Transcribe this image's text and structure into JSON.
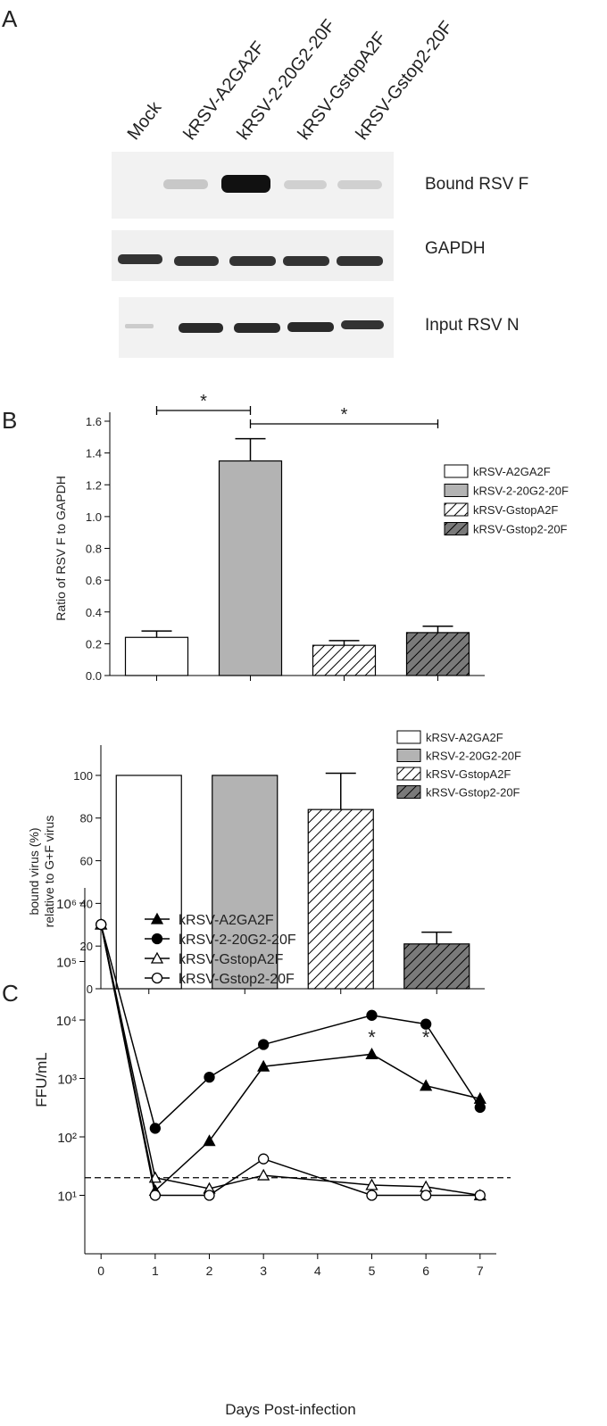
{
  "panel_labels": [
    "A",
    "B",
    "C"
  ],
  "blot": {
    "lanes": [
      "Mock",
      "kRSV-A2GA2F",
      "kRSV-2-20G2-20F",
      "kRSV-GstopA2F",
      "kRSV-Gstop2-20F"
    ],
    "rows": [
      "Bound RSV F",
      "GAPDH",
      "Input RSV N"
    ]
  },
  "chart_data": [
    {
      "type": "bar",
      "ylabel": "Ratio of RSV F to GAPDH",
      "categories": [
        "kRSV-A2GA2F",
        "kRSV-2-20G2-20F",
        "kRSV-GstopA2F",
        "kRSV-Gstop2-20F"
      ],
      "values": [
        0.24,
        1.35,
        0.19,
        0.27
      ],
      "errors": [
        0.04,
        0.14,
        0.03,
        0.04
      ],
      "colors": [
        "#ffffff",
        "#b3b3b3",
        "#ffffff",
        "#7a7a7a"
      ],
      "hatch": [
        false,
        false,
        true,
        true
      ],
      "ylim": [
        0,
        1.6
      ],
      "yticks": [
        {
          "value": 0,
          "label": "0.0"
        },
        0.2,
        0.4,
        0.6,
        0.8,
        {
          "value": 1,
          "label": "1.0"
        },
        1.2,
        1.4,
        1.6
      ],
      "annotations": [
        {
          "text": "*",
          "from": 0,
          "to": 1
        },
        {
          "text": "*",
          "from": 1,
          "to": 3
        }
      ]
    },
    {
      "type": "bar",
      "ylabel": [
        "bound virus (%)",
        "relative to G+F virus"
      ],
      "categories": [
        "kRSV-A2GA2F",
        "kRSV-2-20G2-20F",
        "kRSV-GstopA2F",
        "kRSV-Gstop2-20F"
      ],
      "values": [
        100,
        100,
        84,
        21
      ],
      "errors": [
        null,
        null,
        17,
        5.5
      ],
      "colors": [
        "#ffffff",
        "#b3b3b3",
        "#ffffff",
        "#7a7a7a"
      ],
      "hatch": [
        false,
        false,
        true,
        true
      ],
      "ylim": [
        0,
        110
      ],
      "yticks": [
        0,
        20,
        40,
        60,
        80,
        100
      ]
    },
    {
      "type": "line",
      "log_y": true,
      "ylabel": "FFU/mL",
      "xlabel": "Days Post-infection",
      "x": [
        0,
        1,
        2,
        3,
        5,
        6,
        7
      ],
      "series": [
        {
          "name": "kRSV-A2GA2F",
          "marker": "triangle",
          "filled": true,
          "color": "#000000",
          "values": [
            430000,
            12,
            85,
            1600,
            2600,
            750,
            450
          ]
        },
        {
          "name": "kRSV-2-20G2-20F",
          "marker": "circle",
          "filled": true,
          "color": "#000000",
          "values": [
            430000,
            140,
            1050,
            3800,
            12000,
            8500,
            320
          ]
        },
        {
          "name": "kRSV-GstopA2F",
          "marker": "triangle",
          "filled": false,
          "color": "#000000",
          "values": [
            430000,
            20,
            13,
            22,
            15,
            14,
            10
          ]
        },
        {
          "name": "kRSV-Gstop2-20F",
          "marker": "circle",
          "filled": false,
          "color": "#000000",
          "values": [
            430000,
            10,
            10,
            42,
            10,
            10,
            10
          ]
        }
      ],
      "threshold": 20,
      "annotations": [
        {
          "text": "*",
          "x": 5
        },
        {
          "text": "*",
          "x": 6
        }
      ],
      "xlim": [
        -0.3,
        7.3
      ],
      "xticks": [
        0,
        1,
        2,
        3,
        4,
        5,
        6,
        7
      ],
      "ylim": [
        1,
        1000000
      ],
      "yticks": [
        {
          "value": 10,
          "label": "10¹"
        },
        {
          "value": 100,
          "label": "10²"
        },
        {
          "value": 1000,
          "label": "10³"
        },
        {
          "value": 10000,
          "label": "10⁴"
        },
        {
          "value": 100000,
          "label": "10⁵"
        },
        {
          "value": 1000000,
          "label": "10⁶"
        }
      ]
    }
  ]
}
